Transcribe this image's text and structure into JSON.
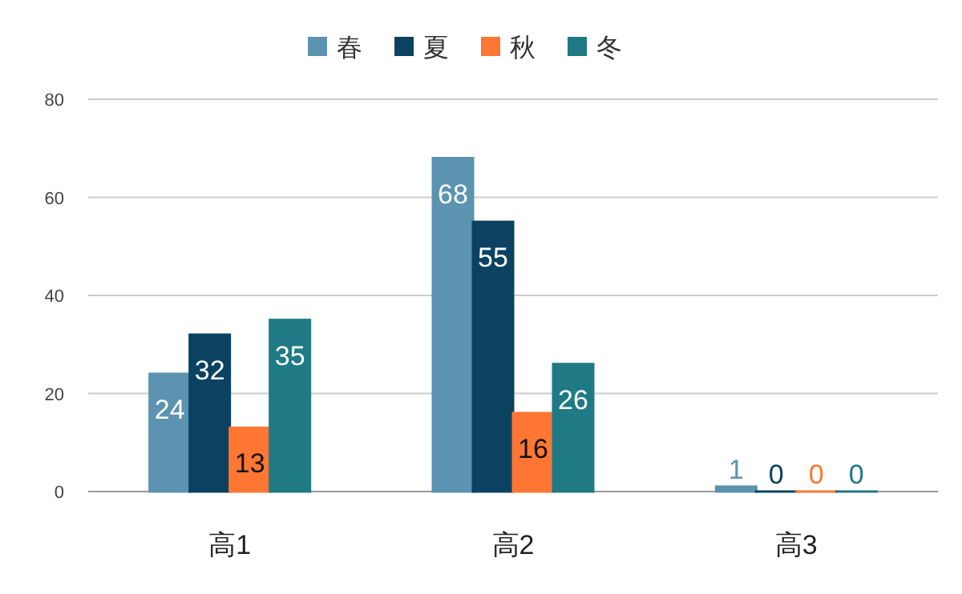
{
  "chart_data": {
    "type": "bar",
    "categories": [
      "高1",
      "高2",
      "高3"
    ],
    "series": [
      {
        "name": "春",
        "color": "#5b93b0",
        "values": [
          24,
          68,
          1
        ]
      },
      {
        "name": "夏",
        "color": "#0b4262",
        "values": [
          32,
          55,
          0
        ]
      },
      {
        "name": "秋",
        "color": "#ff7733",
        "values": [
          13,
          16,
          0
        ]
      },
      {
        "name": "冬",
        "color": "#1f7a85",
        "values": [
          35,
          26,
          0
        ]
      }
    ],
    "ylim": [
      0,
      80
    ],
    "yticks": [
      0,
      20,
      40,
      60,
      80
    ],
    "grid": "y",
    "legend": "top",
    "data_labels": true
  }
}
